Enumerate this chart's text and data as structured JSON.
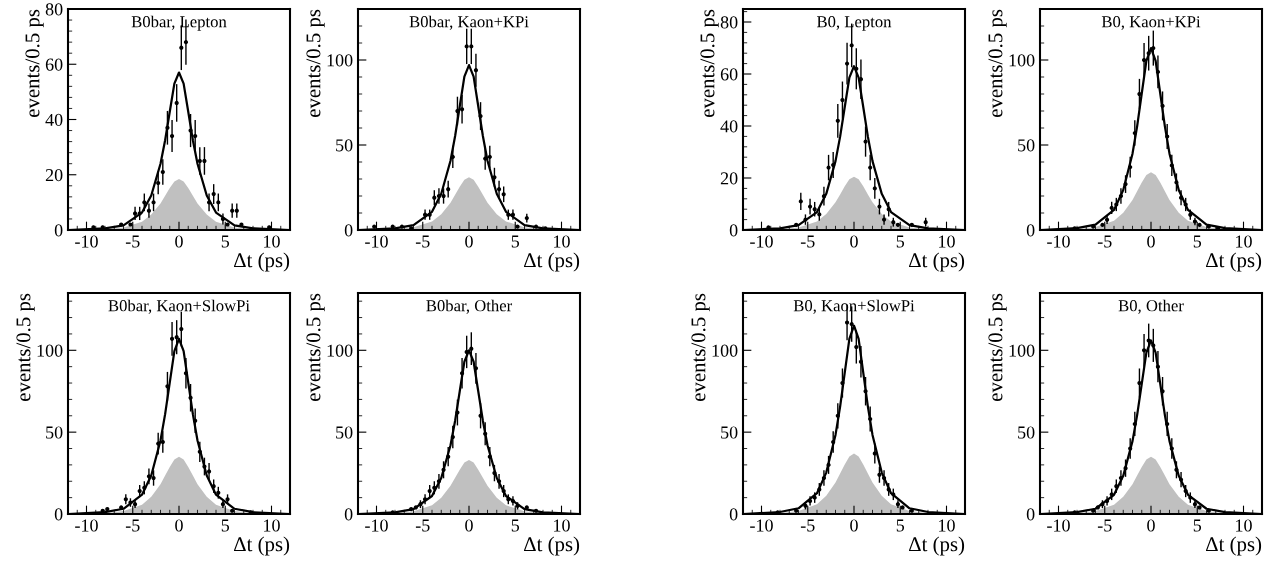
{
  "chart_data": [
    {
      "type": "scatter",
      "title": "B0bar, Lepton",
      "xlabel": "Δt (ps)",
      "ylabel": "events/0.5 ps",
      "xlim": [
        -12,
        12
      ],
      "xticks": [
        -10,
        -5,
        0,
        5,
        10
      ],
      "ylim": [
        0,
        80
      ],
      "yticks": [
        0,
        20,
        40,
        60,
        80
      ],
      "series": [
        {
          "type": "area",
          "color": "#c0c0c0",
          "x": [
            -12,
            -8,
            -6,
            -4,
            -3,
            -2,
            -1.5,
            -1,
            -0.5,
            0,
            0.5,
            1,
            1.5,
            2,
            3,
            4,
            6,
            8,
            12
          ],
          "values": [
            0,
            0.3,
            0.9,
            3,
            5.6,
            9.6,
            12.4,
            15.2,
            17.6,
            18.5,
            17.6,
            15.2,
            12.4,
            9.6,
            5.6,
            3,
            0.9,
            0.3,
            0
          ]
        },
        {
          "type": "line",
          "color": "#000000",
          "x": [
            -12,
            -8,
            -6,
            -4,
            -3,
            -2,
            -1.5,
            -1,
            -0.5,
            0,
            0.5,
            1,
            1.5,
            2,
            3,
            4,
            6,
            8,
            12
          ],
          "values": [
            0,
            0.6,
            1.7,
            6.3,
            12.5,
            24,
            32.5,
            42.8,
            53,
            57,
            53,
            42.8,
            32.5,
            24,
            12.5,
            6.3,
            1.7,
            0.6,
            0
          ]
        },
        {
          "marker": "circle",
          "color": "#000000",
          "x": [
            -9.25,
            -8.25,
            -6.25,
            -5.25,
            -4.75,
            -4.25,
            -3.75,
            -3.25,
            -2.75,
            -2.25,
            -1.75,
            -1.25,
            -0.75,
            -0.25,
            0.25,
            0.75,
            1.25,
            1.75,
            2.25,
            2.75,
            3.25,
            3.75,
            4.25,
            4.75,
            5.25,
            5.75,
            6.25,
            6.75,
            9.75
          ],
          "values": [
            1,
            1,
            2,
            2,
            6,
            6,
            10,
            7,
            10,
            17,
            21,
            37,
            34,
            46,
            66,
            68,
            36,
            34,
            25,
            25,
            10,
            13,
            10,
            4,
            2,
            7,
            7,
            2,
            1
          ],
          "errors": [
            null,
            null,
            null,
            null,
            2.4,
            2.4,
            3.2,
            2.6,
            3.2,
            4.1,
            4.6,
            6.1,
            5.8,
            6.8,
            8.1,
            8.2,
            6,
            5.8,
            5,
            5,
            3.2,
            3.6,
            3.2,
            2,
            null,
            2.6,
            2.6,
            null,
            null
          ]
        }
      ]
    },
    {
      "type": "scatter",
      "title": "B0bar, Kaon+KPi",
      "xlabel": "Δt (ps)",
      "ylabel": "events/0.5 ps",
      "xlim": [
        -12,
        12
      ],
      "xticks": [
        -10,
        -5,
        0,
        5,
        10
      ],
      "ylim": [
        0,
        130
      ],
      "yticks": [
        0,
        50,
        100
      ],
      "series": [
        {
          "type": "area",
          "color": "#c0c0c0",
          "x": [
            -12,
            -8,
            -6,
            -4,
            -3,
            -2,
            -1.5,
            -1,
            -0.5,
            0,
            0.5,
            1,
            1.5,
            2,
            3,
            4,
            6,
            8,
            12
          ],
          "values": [
            0,
            0.5,
            1.6,
            5,
            9.3,
            16.1,
            20.8,
            25.4,
            29.5,
            31,
            29.5,
            25.4,
            20.8,
            16.1,
            9.3,
            5,
            1.6,
            0.5,
            0
          ]
        },
        {
          "type": "line",
          "color": "#000000",
          "x": [
            -12,
            -8,
            -6,
            -4,
            -3,
            -2,
            -1.5,
            -1,
            -0.5,
            0,
            0.5,
            1,
            1.5,
            2,
            3,
            4,
            6,
            8,
            12
          ],
          "values": [
            0,
            1,
            2.9,
            10.7,
            21.3,
            40.7,
            55.3,
            72.8,
            90.2,
            97,
            90.2,
            72.8,
            55.3,
            40.7,
            21.3,
            10.7,
            2.9,
            1,
            0
          ]
        },
        {
          "marker": "circle",
          "color": "#000000",
          "x": [
            -10.25,
            -8.25,
            -7.25,
            -6.25,
            -4.75,
            -4.25,
            -3.75,
            -3.25,
            -2.75,
            -2.25,
            -1.75,
            -1.25,
            -0.75,
            -0.25,
            0.25,
            0.75,
            1.25,
            1.75,
            2.25,
            2.75,
            3.25,
            3.75,
            4.25,
            4.75,
            5.25,
            6.25,
            7.25,
            8.25
          ],
          "values": [
            2,
            2,
            2,
            1,
            9,
            9,
            19,
            20,
            20,
            24,
            43,
            70,
            71,
            108,
            108,
            94,
            67,
            42,
            43,
            31,
            24,
            21,
            9,
            9,
            2,
            7,
            2,
            1
          ],
          "errors": [
            null,
            null,
            null,
            null,
            3,
            3,
            4.4,
            4.5,
            4.5,
            4.9,
            6.6,
            8.4,
            8.4,
            10.4,
            10.4,
            9.7,
            8.2,
            6.5,
            6.6,
            5.6,
            4.9,
            4.6,
            3,
            3,
            null,
            2.6,
            null,
            null
          ]
        }
      ]
    },
    {
      "type": "scatter",
      "title": "B0, Lepton",
      "xlabel": "Δt (ps)",
      "ylabel": "events/0.5 ps",
      "xlim": [
        -12,
        12
      ],
      "xticks": [
        -10,
        -5,
        0,
        5,
        10
      ],
      "ylim": [
        0,
        85
      ],
      "yticks": [
        0,
        20,
        40,
        60,
        80
      ],
      "series": [
        {
          "type": "area",
          "color": "#c0c0c0",
          "x": [
            -12,
            -8,
            -6,
            -4,
            -3,
            -2,
            -1.5,
            -1,
            -0.5,
            0,
            0.5,
            1,
            1.5,
            2,
            3,
            4,
            6,
            8,
            12
          ],
          "values": [
            0,
            0.3,
            1,
            3.3,
            6.2,
            10.7,
            13.7,
            16.8,
            19.5,
            20.5,
            19.5,
            16.8,
            13.7,
            10.7,
            6.2,
            3.3,
            1,
            0.3,
            0
          ]
        },
        {
          "type": "line",
          "color": "#000000",
          "x": [
            -12,
            -8,
            -6,
            -4,
            -3,
            -2,
            -1.5,
            -1,
            -0.5,
            0,
            0.5,
            1,
            1.5,
            2,
            3,
            4,
            6,
            8,
            12
          ],
          "values": [
            0,
            0.6,
            1.9,
            6.9,
            13.9,
            26.5,
            35.9,
            47.3,
            58.6,
            63,
            58.6,
            47.3,
            35.9,
            26.5,
            13.9,
            6.9,
            1.9,
            0.6,
            0
          ]
        },
        {
          "marker": "circle",
          "color": "#000000",
          "x": [
            -9.25,
            -6.25,
            -5.75,
            -5.25,
            -4.75,
            -4.25,
            -3.75,
            -3.25,
            -2.75,
            -2.25,
            -1.75,
            -1.25,
            -0.75,
            -0.25,
            0.25,
            0.75,
            1.25,
            1.75,
            2.25,
            2.75,
            3.25,
            3.75,
            4.25,
            4.75,
            6.25,
            7.75
          ],
          "values": [
            1,
            2,
            11,
            4,
            9,
            8,
            6,
            13,
            24,
            25,
            42,
            50,
            64,
            71,
            62,
            58,
            34,
            24,
            16,
            9,
            4,
            8,
            3,
            2,
            2,
            3
          ],
          "errors": [
            null,
            null,
            3.3,
            2,
            3,
            2.8,
            2.4,
            3.6,
            4.9,
            5,
            6.5,
            7.1,
            8,
            8.4,
            7.9,
            7.6,
            5.8,
            4.9,
            4,
            3,
            2,
            2.8,
            1.7,
            null,
            null,
            1.7
          ]
        }
      ]
    },
    {
      "type": "scatter",
      "title": "B0, Kaon+KPi",
      "xlabel": "Δt (ps)",
      "ylabel": "events/0.5 ps",
      "xlim": [
        -12,
        12
      ],
      "xticks": [
        -10,
        -5,
        0,
        5,
        10
      ],
      "ylim": [
        0,
        130
      ],
      "yticks": [
        0,
        50,
        100
      ],
      "series": [
        {
          "type": "area",
          "color": "#c0c0c0",
          "x": [
            -12,
            -8,
            -6,
            -4,
            -3,
            -2,
            -1.5,
            -1,
            -0.5,
            0,
            0.5,
            1,
            1.5,
            2,
            3,
            4,
            6,
            8,
            12
          ],
          "values": [
            0,
            0.5,
            1.7,
            5.4,
            10.2,
            17.7,
            22.8,
            27.9,
            32.3,
            34,
            32.3,
            27.9,
            22.8,
            17.7,
            10.2,
            5.4,
            1.7,
            0.5,
            0
          ]
        },
        {
          "type": "line",
          "color": "#000000",
          "x": [
            -12,
            -8,
            -6,
            -4,
            -3,
            -2,
            -1.5,
            -1,
            -0.5,
            0,
            0.5,
            1,
            1.5,
            2,
            3,
            4,
            6,
            8,
            12
          ],
          "values": [
            0,
            1.1,
            3.2,
            11.8,
            23.5,
            44.9,
            61,
            80.3,
            99.5,
            107,
            99.5,
            80.3,
            61,
            44.9,
            23.5,
            11.8,
            3.2,
            1.1,
            0
          ]
        },
        {
          "marker": "circle",
          "color": "#000000",
          "x": [
            -8.25,
            -6.25,
            -5.25,
            -4.75,
            -4.25,
            -3.75,
            -3.25,
            -2.75,
            -2.25,
            -1.75,
            -1.25,
            -0.75,
            -0.25,
            0.25,
            0.75,
            1.25,
            1.75,
            2.25,
            2.75,
            3.25,
            3.75,
            4.25,
            4.75,
            5.25,
            6.25,
            7.25
          ],
          "values": [
            1,
            2,
            3,
            6,
            13,
            15,
            20,
            27,
            37,
            57,
            80,
            100,
            104,
            107,
            93,
            73,
            55,
            38,
            28,
            19,
            15,
            9,
            5,
            3,
            2,
            1
          ],
          "errors": [
            null,
            null,
            null,
            2.4,
            3.6,
            3.9,
            4.5,
            5.2,
            6.1,
            7.5,
            8.9,
            10,
            10.2,
            10.3,
            9.6,
            8.5,
            7.4,
            6.2,
            5.3,
            4.4,
            3.9,
            3,
            2.2,
            null,
            null,
            null
          ]
        }
      ]
    },
    {
      "type": "scatter",
      "title": "B0bar, Kaon+SlowPi",
      "xlabel": "Δt (ps)",
      "ylabel": "events/0.5 ps",
      "xlim": [
        -12,
        12
      ],
      "xticks": [
        -10,
        -5,
        0,
        5,
        10
      ],
      "ylim": [
        0,
        135
      ],
      "yticks": [
        0,
        50,
        100
      ],
      "series": [
        {
          "type": "area",
          "color": "#c0c0c0",
          "x": [
            -12,
            -8,
            -6,
            -4,
            -3,
            -2,
            -1.5,
            -1,
            -0.5,
            0,
            0.5,
            1,
            1.5,
            2,
            3,
            4,
            6,
            8,
            12
          ],
          "values": [
            0,
            0.5,
            1.8,
            5.6,
            10.5,
            18.2,
            23.5,
            28.7,
            33.3,
            35,
            33.3,
            28.7,
            23.5,
            18.2,
            10.5,
            5.6,
            1.8,
            0.5,
            0
          ]
        },
        {
          "type": "line",
          "color": "#000000",
          "x": [
            -12,
            -8,
            -6,
            -4,
            -3,
            -2,
            -1.5,
            -1,
            -0.5,
            0,
            0.5,
            1,
            1.5,
            2,
            3,
            4,
            6,
            8,
            12
          ],
          "values": [
            0,
            1.1,
            3.2,
            11.8,
            23.5,
            44.9,
            61,
            80.3,
            99.5,
            107,
            99.5,
            80.3,
            61,
            44.9,
            23.5,
            11.8,
            3.2,
            1.1,
            0
          ]
        },
        {
          "marker": "circle",
          "color": "#000000",
          "x": [
            -8.25,
            -7.75,
            -6.25,
            -5.75,
            -5.25,
            -4.75,
            -4.25,
            -3.75,
            -3.25,
            -2.75,
            -2.25,
            -1.75,
            -1.25,
            -0.75,
            -0.25,
            0.25,
            0.75,
            1.25,
            1.75,
            2.25,
            2.75,
            3.25,
            3.75,
            4.25,
            4.75,
            5.25,
            5.75,
            7.75
          ],
          "values": [
            2,
            3,
            4,
            9,
            7,
            6,
            14,
            16,
            23,
            22,
            43,
            44,
            78,
            107,
            108,
            113,
            86,
            71,
            57,
            38,
            29,
            26,
            17,
            13,
            6,
            9,
            2,
            1
          ],
          "errors": [
            null,
            null,
            null,
            3,
            2.6,
            2.4,
            3.7,
            4,
            4.8,
            4.7,
            6.6,
            6.6,
            8.8,
            10.3,
            10.4,
            10.6,
            9.3,
            8.4,
            7.5,
            6.2,
            5.4,
            5.1,
            4.1,
            3.6,
            2.4,
            3,
            null,
            null
          ]
        }
      ]
    },
    {
      "type": "scatter",
      "title": "B0bar, Other",
      "xlabel": "Δt (ps)",
      "ylabel": "events/0.5 ps",
      "xlim": [
        -12,
        12
      ],
      "xticks": [
        -10,
        -5,
        0,
        5,
        10
      ],
      "ylim": [
        0,
        135
      ],
      "yticks": [
        0,
        50,
        100
      ],
      "series": [
        {
          "type": "area",
          "color": "#c0c0c0",
          "x": [
            -12,
            -8,
            -6,
            -4,
            -3,
            -2,
            -1.5,
            -1,
            -0.5,
            0,
            0.5,
            1,
            1.5,
            2,
            3,
            4,
            6,
            8,
            12
          ],
          "values": [
            0,
            0.5,
            1.7,
            5.3,
            9.9,
            17.2,
            22.1,
            27.1,
            31.4,
            33,
            31.4,
            27.1,
            22.1,
            17.2,
            9.9,
            5.3,
            1.7,
            0.5,
            0
          ]
        },
        {
          "type": "line",
          "color": "#000000",
          "x": [
            -12,
            -8,
            -6,
            -4,
            -3,
            -2,
            -1.5,
            -1,
            -0.5,
            0,
            0.5,
            1,
            1.5,
            2,
            3,
            4,
            6,
            8,
            12
          ],
          "values": [
            0,
            1,
            3,
            11,
            22,
            42,
            57,
            75,
            93,
            100,
            93,
            75,
            57,
            42,
            22,
            11,
            3,
            1,
            0
          ]
        },
        {
          "marker": "circle",
          "color": "#000000",
          "x": [
            -8.25,
            -6.25,
            -5.75,
            -5.25,
            -4.75,
            -4.25,
            -3.75,
            -3.25,
            -2.75,
            -2.25,
            -1.75,
            -1.25,
            -0.75,
            -0.25,
            0.25,
            0.75,
            1.25,
            1.75,
            2.25,
            2.75,
            3.25,
            3.75,
            4.25,
            4.75,
            5.25,
            6.25,
            7.25
          ],
          "values": [
            1,
            3,
            4,
            6,
            9,
            14,
            16,
            20,
            27,
            35,
            47,
            62,
            86,
            99,
            101,
            89,
            60,
            49,
            35,
            25,
            20,
            14,
            9,
            8,
            5,
            4,
            2
          ],
          "errors": [
            null,
            null,
            null,
            2.4,
            3,
            3.7,
            4,
            4.5,
            5.2,
            5.9,
            6.9,
            7.9,
            9.3,
            9.9,
            10,
            9.4,
            7.7,
            7,
            5.9,
            5,
            4.5,
            3.7,
            3,
            2.8,
            2.2,
            null,
            null
          ]
        }
      ]
    },
    {
      "type": "scatter",
      "title": "B0, Kaon+SlowPi",
      "xlabel": "Δt (ps)",
      "ylabel": "events/0.5 ps",
      "xlim": [
        -12,
        12
      ],
      "xticks": [
        -10,
        -5,
        0,
        5,
        10
      ],
      "ylim": [
        0,
        135
      ],
      "yticks": [
        0,
        50,
        100
      ],
      "series": [
        {
          "type": "area",
          "color": "#c0c0c0",
          "x": [
            -12,
            -8,
            -6,
            -4,
            -3,
            -2,
            -1.5,
            -1,
            -0.5,
            0,
            0.5,
            1,
            1.5,
            2,
            3,
            4,
            6,
            8,
            12
          ],
          "values": [
            0,
            0.6,
            1.9,
            5.9,
            11.1,
            19.2,
            24.8,
            30.3,
            35.2,
            37,
            35.2,
            30.3,
            24.8,
            19.2,
            11.1,
            5.9,
            1.9,
            0.6,
            0
          ]
        },
        {
          "type": "line",
          "color": "#000000",
          "x": [
            -12,
            -8,
            -6,
            -4,
            -3,
            -2,
            -1.5,
            -1,
            -0.5,
            0,
            0.5,
            1,
            1.5,
            2,
            3,
            4,
            6,
            8,
            12
          ],
          "values": [
            0,
            1.2,
            3.5,
            12.7,
            25.3,
            48.3,
            65.6,
            86.3,
            107,
            115,
            107,
            86.3,
            65.6,
            48.3,
            25.3,
            12.7,
            3.5,
            1.2,
            0
          ]
        },
        {
          "marker": "circle",
          "color": "#000000",
          "x": [
            -8.25,
            -6.25,
            -5.25,
            -4.75,
            -4.25,
            -3.75,
            -3.25,
            -2.75,
            -2.25,
            -1.75,
            -1.25,
            -0.75,
            -0.25,
            0.25,
            0.75,
            1.25,
            1.75,
            2.25,
            2.75,
            3.25,
            3.75,
            4.25,
            4.75,
            5.25,
            6.25
          ],
          "values": [
            1,
            2,
            5,
            8,
            10,
            15,
            22,
            30,
            44,
            60,
            80,
            117,
            116,
            102,
            93,
            75,
            58,
            37,
            24,
            22,
            15,
            12,
            6,
            4,
            2
          ],
          "errors": [
            null,
            null,
            2.2,
            2.8,
            3.2,
            3.9,
            4.7,
            5.5,
            6.6,
            7.7,
            8.9,
            10.8,
            10.8,
            10.1,
            9.6,
            8.7,
            7.6,
            6.1,
            4.9,
            4.7,
            3.9,
            3.5,
            2.4,
            null,
            null
          ]
        }
      ]
    },
    {
      "type": "scatter",
      "title": "B0, Other",
      "xlabel": "Δt (ps)",
      "ylabel": "events/0.5 ps",
      "xlim": [
        -12,
        12
      ],
      "xticks": [
        -10,
        -5,
        0,
        5,
        10
      ],
      "ylim": [
        0,
        135
      ],
      "yticks": [
        0,
        50,
        100
      ],
      "series": [
        {
          "type": "area",
          "color": "#c0c0c0",
          "x": [
            -12,
            -8,
            -6,
            -4,
            -3,
            -2,
            -1.5,
            -1,
            -0.5,
            0,
            0.5,
            1,
            1.5,
            2,
            3,
            4,
            6,
            8,
            12
          ],
          "values": [
            0,
            0.5,
            1.8,
            5.6,
            10.5,
            18.2,
            23.5,
            28.7,
            33.3,
            35,
            33.3,
            28.7,
            23.5,
            18.2,
            10.5,
            5.6,
            1.8,
            0.5,
            0
          ]
        },
        {
          "type": "line",
          "color": "#000000",
          "x": [
            -12,
            -8,
            -6,
            -4,
            -3,
            -2,
            -1.5,
            -1,
            -0.5,
            0,
            0.5,
            1,
            1.5,
            2,
            3,
            4,
            6,
            8,
            12
          ],
          "values": [
            0,
            1.1,
            3.2,
            11.7,
            23.3,
            44.5,
            60.4,
            79.5,
            98.6,
            106,
            98.6,
            79.5,
            60.4,
            44.5,
            23.3,
            11.7,
            3.2,
            1.1,
            0
          ]
        },
        {
          "marker": "circle",
          "color": "#000000",
          "x": [
            -8.25,
            -6.25,
            -5.75,
            -5.25,
            -4.75,
            -4.25,
            -3.75,
            -3.25,
            -2.75,
            -2.25,
            -1.75,
            -1.25,
            -0.75,
            -0.25,
            0.25,
            0.75,
            1.25,
            1.75,
            2.25,
            2.75,
            3.25,
            3.75,
            4.25,
            4.75,
            5.25,
            6.25
          ],
          "values": [
            1,
            2,
            4,
            6,
            8,
            12,
            17,
            22,
            28,
            40,
            55,
            80,
            100,
            106,
            103,
            90,
            75,
            55,
            40,
            27,
            21,
            14,
            10,
            6,
            4,
            2
          ],
          "errors": [
            null,
            null,
            null,
            2.4,
            2.8,
            3.5,
            4.1,
            4.7,
            5.3,
            6.3,
            7.4,
            8.9,
            10,
            10.3,
            10.1,
            9.5,
            8.7,
            7.4,
            6.3,
            5.2,
            4.6,
            3.7,
            3.2,
            2.4,
            null,
            null
          ]
        }
      ]
    }
  ]
}
